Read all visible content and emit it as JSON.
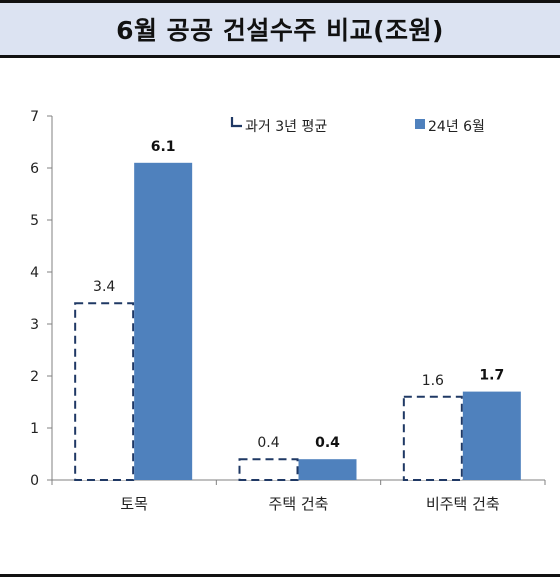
{
  "header": {
    "title": "6월 공공 건설수주 비교(조원)"
  },
  "colors": {
    "header_bg": "#dce3f2",
    "bar_fill": "#4f81bd",
    "dash_stroke": "#1f3864"
  },
  "chart_data": {
    "type": "bar",
    "title": "6월 공공 건설수주 비교(조원)",
    "categories": [
      "토목",
      "주택 건축",
      "비주택 건축"
    ],
    "series": [
      {
        "name": "과거 3년 평균",
        "style": "dashed-outline",
        "values": [
          3.4,
          0.4,
          1.6
        ],
        "labels": [
          "3.4",
          "0.4",
          "1.6"
        ]
      },
      {
        "name": "24년 6월",
        "style": "solid",
        "values": [
          6.1,
          0.4,
          1.7
        ],
        "labels": [
          "6.1",
          "0.4",
          "1.7"
        ]
      }
    ],
    "ylim": [
      0,
      7
    ],
    "yticks": [
      "0",
      "1",
      "2",
      "3",
      "4",
      "5",
      "6",
      "7"
    ],
    "grid": false,
    "legend": "top-right"
  }
}
